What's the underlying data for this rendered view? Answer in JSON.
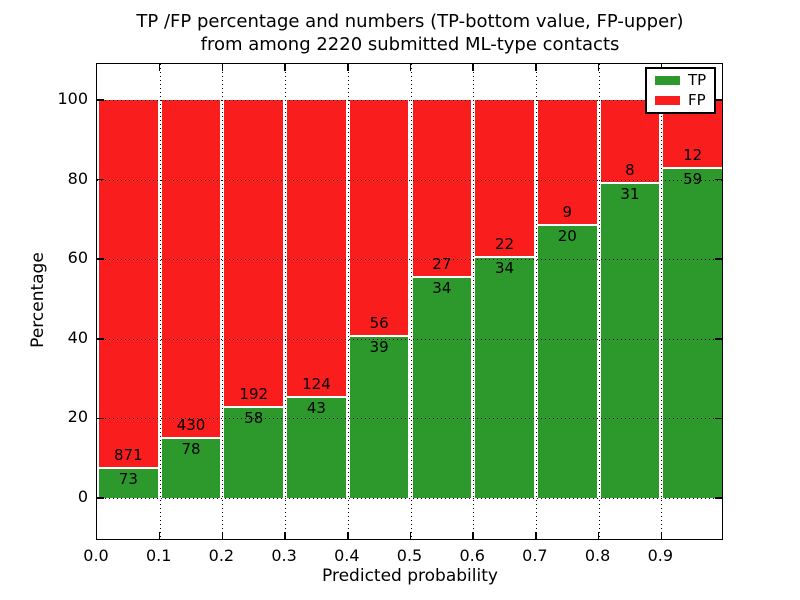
{
  "title": {
    "line1": "TP /FP percentage and numbers (TP-bottom value, FP-upper)",
    "line2": "from among 2220 submitted ML-type contacts"
  },
  "chart_data": {
    "type": "bar",
    "stacked": true,
    "normalized_to_percent": 100,
    "x_bin_starts": [
      0.0,
      0.1,
      0.2,
      0.3,
      0.4,
      0.5,
      0.6,
      0.7,
      0.8,
      0.9
    ],
    "bin_width": 0.1,
    "series": [
      {
        "name": "TP",
        "color": "#2d992d",
        "counts": [
          73,
          78,
          58,
          43,
          39,
          34,
          34,
          20,
          31,
          59
        ]
      },
      {
        "name": "FP",
        "color": "#fa1d1d",
        "counts": [
          871,
          430,
          192,
          124,
          56,
          27,
          22,
          9,
          8,
          12
        ]
      }
    ],
    "tp_percent": [
      7.7,
      15.4,
      23.2,
      25.7,
      41.1,
      55.7,
      60.7,
      69.0,
      79.5,
      83.1
    ],
    "xlabel": "Predicted probability",
    "ylabel": "Percentage",
    "x_tick_labels": [
      "0.0",
      "0.1",
      "0.2",
      "0.3",
      "0.4",
      "0.5",
      "0.6",
      "0.7",
      "0.8",
      "0.9"
    ],
    "y_ticks": [
      0,
      20,
      40,
      60,
      80,
      100
    ],
    "y_tick_labels": [
      "0",
      "20",
      "40",
      "60",
      "80",
      "100"
    ],
    "xlim": [
      0.0,
      1.0
    ],
    "ylim": [
      -10.8,
      109.3
    ],
    "grid": {
      "style": "dotted",
      "color": "#000000"
    },
    "legend": {
      "position": "upper right",
      "entries": [
        {
          "label": "TP",
          "color": "#2d992d"
        },
        {
          "label": "FP",
          "color": "#fa1d1d"
        }
      ]
    },
    "frame_color": "#000000",
    "background": "#ffffff"
  }
}
